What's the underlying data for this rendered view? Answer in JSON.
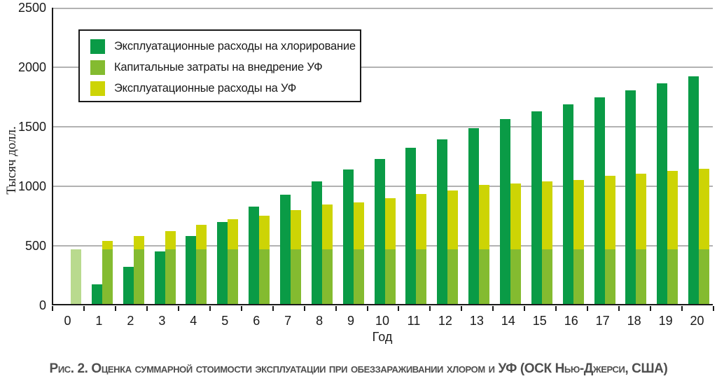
{
  "figure_caption": "Рис. 2. Оценка суммарной стоимости эксплуатации при обеззараживании хлором и УФ (ОСК Нью-Джерси, США)",
  "chart_data": {
    "type": "bar",
    "title": "",
    "xlabel": "Год",
    "ylabel": "Тысяч долл.",
    "ylim": [
      0,
      2500
    ],
    "yticks": [
      0,
      500,
      1000,
      1500,
      2000,
      2500
    ],
    "grid": true,
    "legend_position": "top-left-inside",
    "categories": [
      "0",
      "1",
      "2",
      "3",
      "4",
      "5",
      "6",
      "7",
      "8",
      "9",
      "10",
      "11",
      "12",
      "13",
      "14",
      "15",
      "16",
      "17",
      "18",
      "19",
      "20"
    ],
    "series": [
      {
        "name": "Эксплуатационные расходы на хлорирование",
        "color": "#0a9b46",
        "values": [
          null,
          165,
          310,
          440,
          570,
          690,
          815,
          920,
          1030,
          1130,
          1220,
          1310,
          1385,
          1475,
          1550,
          1615,
          1675,
          1735,
          1795,
          1855,
          1910
        ]
      },
      {
        "name": "Капитальные затраты на внедрение УФ",
        "color": "#84bb30",
        "year0_color": "#b9da8e",
        "values": [
          460,
          460,
          460,
          460,
          460,
          460,
          460,
          460,
          460,
          460,
          460,
          460,
          460,
          460,
          460,
          460,
          460,
          460,
          460,
          460,
          460
        ]
      },
      {
        "name": "Эксплуатационные расходы на УФ",
        "color": "#cdd405",
        "note": "bar tops (drawn stacked above capital costs segment)",
        "values": [
          null,
          530,
          570,
          615,
          665,
          710,
          740,
          790,
          835,
          855,
          890,
          925,
          955,
          1000,
          1015,
          1030,
          1045,
          1075,
          1095,
          1120,
          1135
        ]
      }
    ]
  },
  "style": {
    "axis_color": "#1a1a1a",
    "grid_color": "#b2b2b2",
    "caption_color": "#4f4f4f",
    "background": "#ffffff"
  }
}
